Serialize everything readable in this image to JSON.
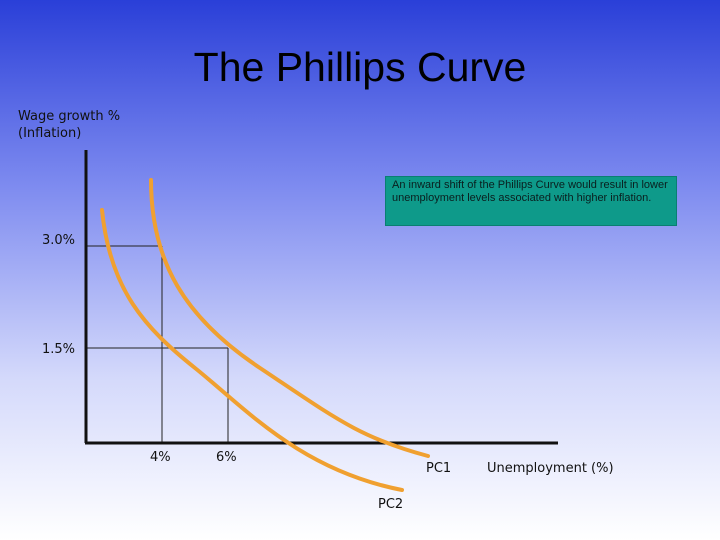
{
  "title": "The Phillips Curve",
  "axes": {
    "y_label_line1": "Wage growth %",
    "y_label_line2": "(Inflation)",
    "x_label": "Unemployment (%)"
  },
  "ticks": {
    "y_high": "3.0%",
    "y_low": "1.5%",
    "x_left": "4%",
    "x_right": "6%"
  },
  "curves": {
    "pc1_label": "PC1",
    "pc2_label": "PC2",
    "color": "#f0a030"
  },
  "annotation": "An inward shift of the Phillips Curve would result in lower unemployment levels associated with higher inflation."
}
